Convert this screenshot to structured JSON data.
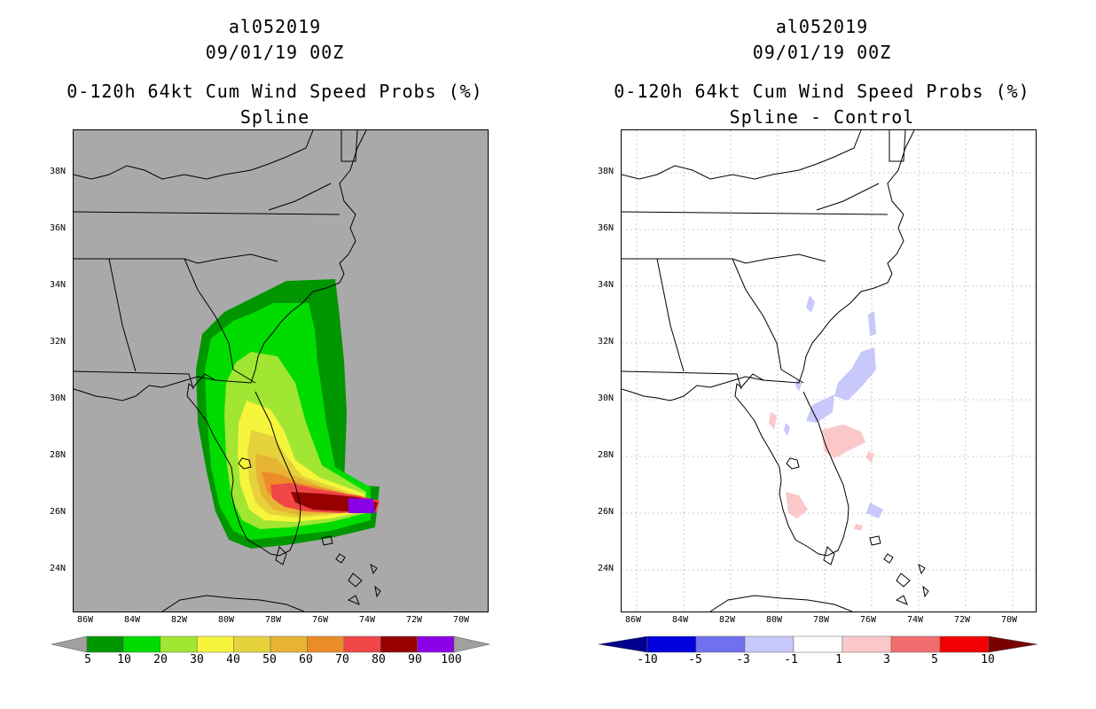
{
  "left": {
    "title1": "al052019",
    "title2": "09/01/19 00Z",
    "title3": "0-120h 64kt Cum Wind Speed Probs (%)",
    "title4": "Spline",
    "colorbar": {
      "labels": [
        "5",
        "10",
        "20",
        "30",
        "40",
        "50",
        "60",
        "70",
        "80",
        "90",
        "100"
      ],
      "colors": [
        "#009600",
        "#00dc00",
        "#a0e632",
        "#f5f53c",
        "#e6d23c",
        "#e6b432",
        "#eb8c28",
        "#f04646",
        "#960000",
        "#8c00e6"
      ],
      "under_color": "#a0a0a0",
      "over_color": "#a0a0a0"
    },
    "background": "#a9a9a9"
  },
  "right": {
    "title1": "al052019",
    "title2": "09/01/19 00Z",
    "title3": "0-120h 64kt Cum Wind Speed Probs (%)",
    "title4": "Spline - Control",
    "colorbar": {
      "labels": [
        "-10",
        "-5",
        "-3",
        "-1",
        "1",
        "3",
        "5",
        "10"
      ],
      "colors": [
        "#0000dc",
        "#7070f0",
        "#c8c8fa",
        "#ffffff",
        "#fac8c8",
        "#f06e6e",
        "#f00000"
      ],
      "under_color": "#00008c",
      "over_color": "#780000"
    },
    "background": "#ffffff"
  },
  "axes": {
    "lat_labels": [
      "38N",
      "36N",
      "34N",
      "32N",
      "30N",
      "28N",
      "26N",
      "24N"
    ],
    "lon_labels": [
      "86W",
      "84W",
      "82W",
      "80W",
      "78W",
      "76W",
      "74W",
      "72W",
      "70W"
    ]
  }
}
